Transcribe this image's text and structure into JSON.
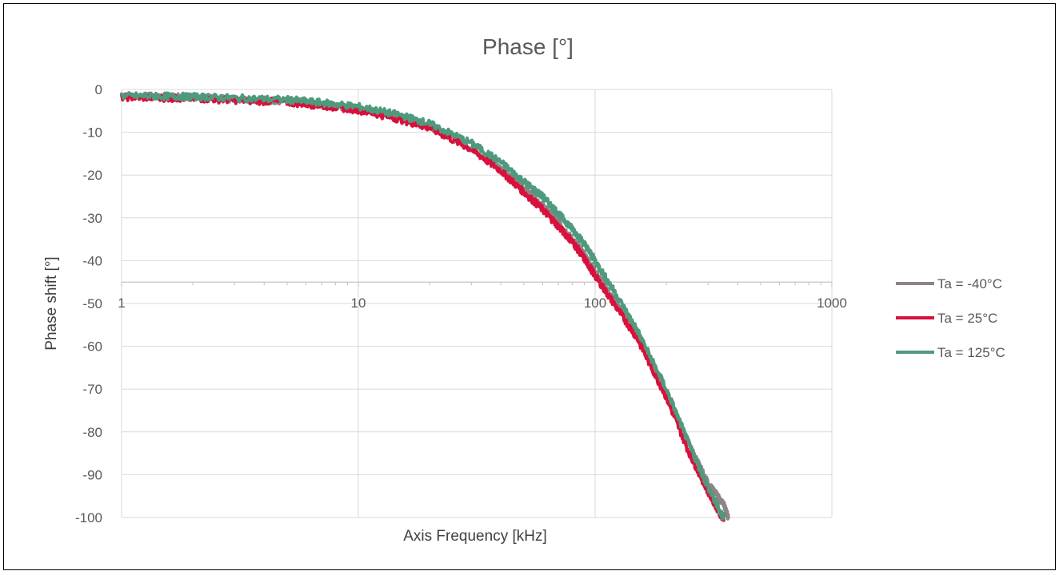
{
  "chart_data": {
    "type": "line",
    "title": "Phase [°]",
    "xlabel": "Axis Frequency [kHz]",
    "ylabel": "Phase shift [°]",
    "x_scale": "log",
    "xlim": [
      1,
      1000
    ],
    "ylim": [
      -100,
      0
    ],
    "x_ticks": [
      "1",
      "10",
      "100",
      "1000"
    ],
    "y_ticks": [
      "0",
      "-10",
      "-20",
      "-30",
      "-40",
      "-50",
      "-60",
      "-70",
      "-80",
      "-90",
      "-100"
    ],
    "grid": true,
    "x_axis_crosses_at": -45,
    "legend_position": "right",
    "series": [
      {
        "name": "Ta = -40°C",
        "color": "#8c8485",
        "x": [
          1,
          1.5,
          2,
          3,
          5,
          7,
          10,
          15,
          20,
          30,
          40,
          50,
          60,
          70,
          80,
          90,
          100,
          120,
          150,
          200,
          250,
          300,
          350,
          366
        ],
        "values": [
          -1.5,
          -1.7,
          -1.8,
          -2.2,
          -2.7,
          -3.5,
          -4.5,
          -6.5,
          -8.5,
          -13.5,
          -18.5,
          -23,
          -27,
          -31,
          -35,
          -38.5,
          -42.5,
          -49,
          -57,
          -71,
          -83,
          -92,
          -97,
          -100
        ]
      },
      {
        "name": "Ta = 25°C",
        "color": "#d9103c",
        "x": [
          1,
          1.5,
          2,
          3,
          5,
          7,
          10,
          15,
          20,
          30,
          40,
          50,
          60,
          70,
          80,
          90,
          100,
          120,
          150,
          200,
          250,
          300,
          340,
          350
        ],
        "values": [
          -1.8,
          -2,
          -2.1,
          -2.5,
          -3,
          -3.8,
          -4.8,
          -7,
          -9,
          -14,
          -19,
          -24,
          -28,
          -32,
          -35.5,
          -39.5,
          -43.5,
          -50,
          -58,
          -72,
          -85,
          -94,
          -99.5,
          -100
        ]
      },
      {
        "name": "Ta = 125°C",
        "color": "#4e9a7c",
        "x": [
          1,
          1.5,
          2,
          3,
          5,
          7,
          10,
          15,
          20,
          30,
          40,
          50,
          60,
          70,
          80,
          90,
          100,
          120,
          150,
          200,
          250,
          300,
          340,
          350
        ],
        "values": [
          -1.5,
          -1.6,
          -1.7,
          -2,
          -2.4,
          -3.1,
          -4,
          -6,
          -8,
          -12.5,
          -17,
          -21.5,
          -25,
          -29,
          -32.5,
          -36,
          -40,
          -47,
          -56,
          -70,
          -83,
          -93,
          -99,
          -100
        ]
      }
    ]
  }
}
